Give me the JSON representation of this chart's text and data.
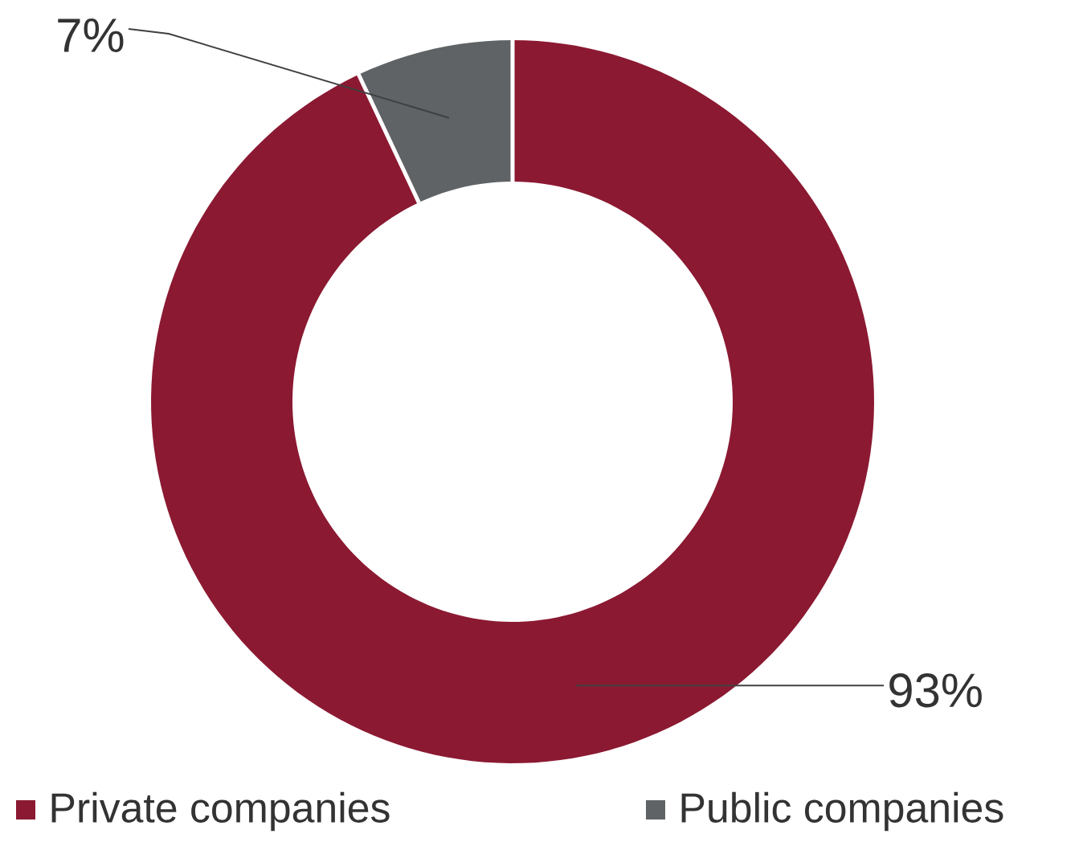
{
  "chart_data": {
    "type": "donut",
    "categories": [
      "Private companies",
      "Public companies"
    ],
    "values": [
      93,
      7
    ],
    "colors": [
      "#8b1932",
      "#5f6366"
    ],
    "value_labels": [
      "93%",
      "7%"
    ],
    "legend": "bottom"
  }
}
